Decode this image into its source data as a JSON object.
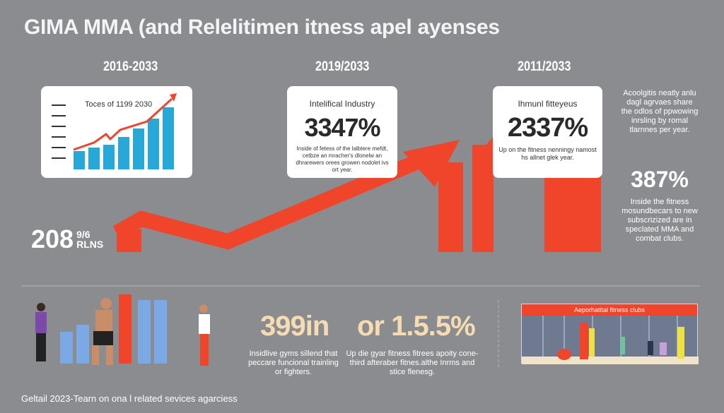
{
  "title": "GIMA MMA (and Relelitimen itness apel ayenses",
  "years": [
    "2016-2033",
    "2019/2033",
    "2011/2033"
  ],
  "cards": [
    {
      "heading": "Toces of 1199 2030"
    },
    {
      "heading": "Intelifical Industry",
      "value": "3347%",
      "text": "Inside of fetess of the lalbtere mefdt, cetbze an mracher's dlonelw an dhrarewers orees growen nodolet ivs ort year."
    },
    {
      "heading": "Ihmunl fitteyeus",
      "value": "2337%",
      "text": "Up on the fitness nenningy namost hs allnet glek year."
    }
  ],
  "left_stat": {
    "value": "208",
    "sup": "9/6",
    "sub": "RLNS"
  },
  "right_col": {
    "text1": "Acoolgitis neatly anlu dagl agrvaes share the odlos of ppwowing inrsling by romal tlarnnes per year.",
    "value": "387%",
    "text2": "Inside the fitness mosundbecars to new subscrizized are in speclated MMA and combat clubs."
  },
  "bottom": [
    {
      "value": "399in",
      "text": "Insidlive gyms sillend that peccare funcional trainling or fighters."
    },
    {
      "value": "or 1.5.5%",
      "text": "Up die gyar fitness fitrees apoity cone-third afteraber fitnes.althe Inrms and stice flenesg."
    }
  ],
  "club_banner": "Aeporhatital fitness clubs",
  "footer": "Geltail 2023-Tearn on ona l related sevices agarciess",
  "colors": {
    "background": "#8b8c90",
    "accent_red": "#f0452a",
    "bar_blue": "#26a9d9",
    "tan": "#f5dcb3"
  }
}
